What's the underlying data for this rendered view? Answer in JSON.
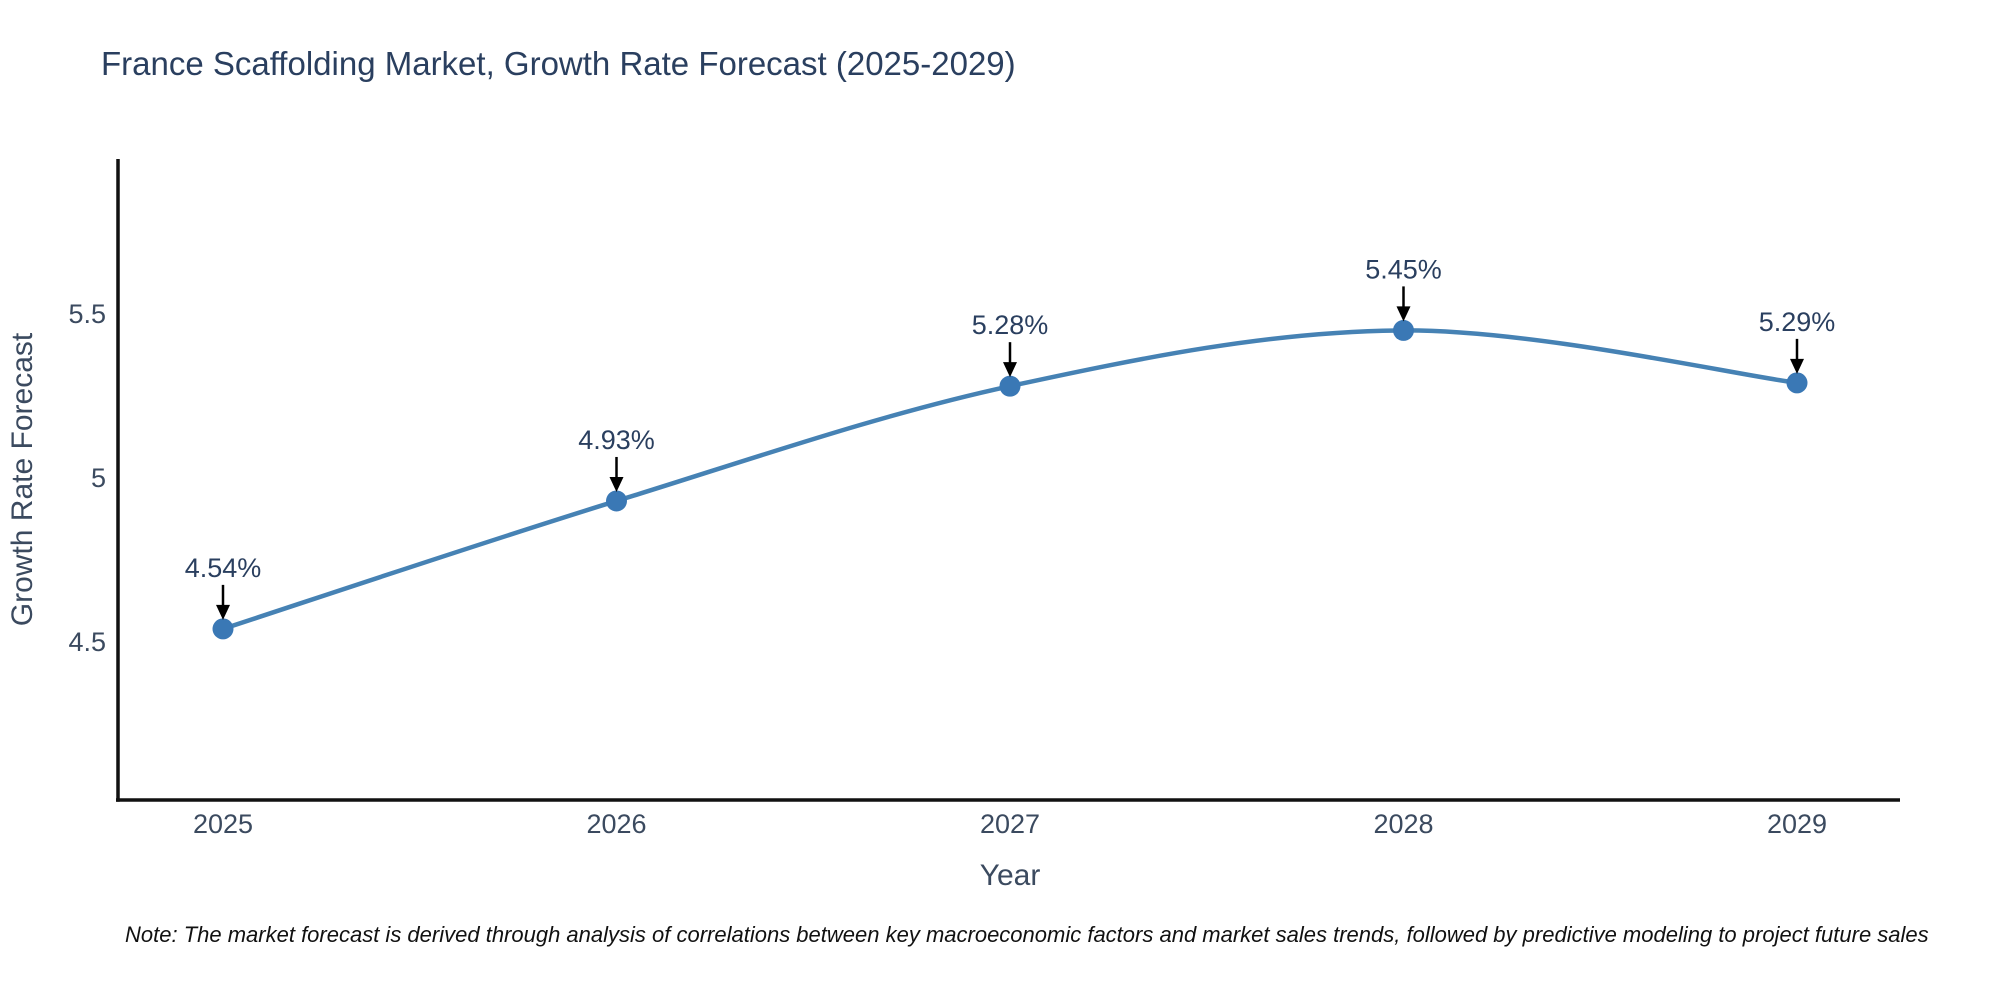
{
  "page": {
    "background_color": "#ffffff"
  },
  "chart_data": {
    "type": "line",
    "title": "France Scaffolding Market, Growth Rate Forecast (2025-2029)",
    "xlabel": "Year",
    "ylabel": "Growth Rate Forecast",
    "x": [
      2025,
      2026,
      2027,
      2028,
      2029
    ],
    "series": [
      {
        "name": "Growth Rate Forecast",
        "values": [
          4.54,
          4.93,
          5.28,
          5.45,
          5.29
        ],
        "point_labels": [
          "4.54%",
          "4.93%",
          "5.28%",
          "5.45%",
          "5.29%"
        ]
      }
    ],
    "x_tick_labels": [
      "2025",
      "2026",
      "2027",
      "2028",
      "2029"
    ],
    "y_ticks": [
      {
        "value": 4.5,
        "label": "4.5"
      },
      {
        "value": 5.0,
        "label": "5"
      },
      {
        "value": 5.5,
        "label": "5.5"
      }
    ],
    "xlim": [
      2024.73,
      2029.26
    ],
    "ylim": [
      3.99,
      5.97
    ],
    "line_shape": "spline",
    "grid": false,
    "legend_position": "none",
    "annotations_style": "value label with downward black arrow pointing at each marker",
    "colors": {
      "line": "#4682b4",
      "marker": "#3a78b5",
      "axis": "#111111",
      "arrow": "#000000",
      "title_text": "#2a3f5f",
      "tick_text": "#3b4a5f",
      "background": "#ffffff"
    }
  },
  "note": {
    "text": "Note: The market forecast is derived through analysis of correlations between key macroeconomic factors and market sales trends, followed by predictive modeling to project future sales"
  }
}
